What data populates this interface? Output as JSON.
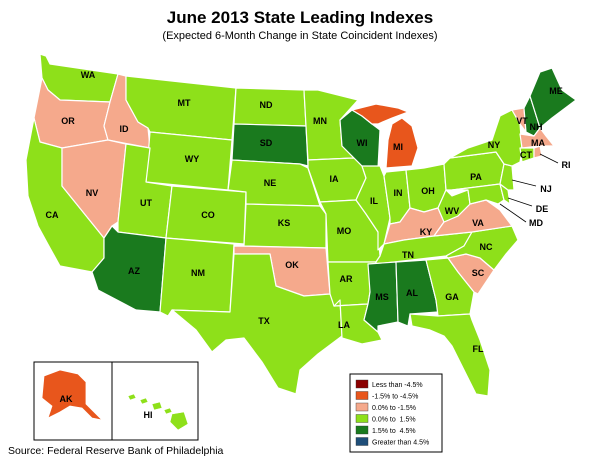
{
  "title": "June 2013 State Leading Indexes",
  "subtitle": "(Expected 6-Month Change in State Coincident Indexes)",
  "source": "Source: Federal Reserve Bank of Philadelphia",
  "colors": {
    "lt_neg45": "#8b0000",
    "neg15_neg45": "#e8561c",
    "zero_neg15": "#f5a98c",
    "zero_15": "#8ee01a",
    "p15_45": "#1a7a1e",
    "gt45": "#1f4e79"
  },
  "legend": [
    {
      "label": "Less than -4.5%",
      "color": "#8b0000"
    },
    {
      "label": "-1.5% to -4.5%",
      "color": "#e8561c"
    },
    {
      "label": "0.0% to -1.5%",
      "color": "#f5a98c"
    },
    {
      "label": "0.0% to  1.5%",
      "color": "#8ee01a"
    },
    {
      "label": "1.5% to  4.5%",
      "color": "#1a7a1e"
    },
    {
      "label": "Greater than 4.5%",
      "color": "#1f4e79"
    }
  ],
  "states": {
    "WA": {
      "label": "WA",
      "category": "0.0% to  1.5%"
    },
    "OR": {
      "label": "OR",
      "category": "0.0% to -1.5%"
    },
    "CA": {
      "label": "CA",
      "category": "0.0% to  1.5%"
    },
    "ID": {
      "label": "ID",
      "category": "0.0% to -1.5%"
    },
    "NV": {
      "label": "NV",
      "category": "0.0% to -1.5%"
    },
    "MT": {
      "label": "MT",
      "category": "0.0% to  1.5%"
    },
    "WY": {
      "label": "WY",
      "category": "0.0% to  1.5%"
    },
    "UT": {
      "label": "UT",
      "category": "0.0% to  1.5%"
    },
    "AZ": {
      "label": "AZ",
      "category": "1.5% to  4.5%"
    },
    "CO": {
      "label": "CO",
      "category": "0.0% to  1.5%"
    },
    "NM": {
      "label": "NM",
      "category": "0.0% to  1.5%"
    },
    "ND": {
      "label": "ND",
      "category": "0.0% to  1.5%"
    },
    "SD": {
      "label": "SD",
      "category": "1.5% to  4.5%"
    },
    "NE": {
      "label": "NE",
      "category": "0.0% to  1.5%"
    },
    "KS": {
      "label": "KS",
      "category": "0.0% to  1.5%"
    },
    "OK": {
      "label": "OK",
      "category": "0.0% to -1.5%"
    },
    "TX": {
      "label": "TX",
      "category": "0.0% to  1.5%"
    },
    "MN": {
      "label": "MN",
      "category": "0.0% to  1.5%"
    },
    "IA": {
      "label": "IA",
      "category": "0.0% to  1.5%"
    },
    "MO": {
      "label": "MO",
      "category": "0.0% to  1.5%"
    },
    "AR": {
      "label": "AR",
      "category": "0.0% to  1.5%"
    },
    "LA": {
      "label": "LA",
      "category": "0.0% to  1.5%"
    },
    "WI": {
      "label": "WI",
      "category": "1.5% to  4.5%"
    },
    "IL": {
      "label": "IL",
      "category": "0.0% to  1.5%"
    },
    "MI": {
      "label": "MI",
      "category": "-1.5% to -4.5%"
    },
    "IN": {
      "label": "IN",
      "category": "0.0% to  1.5%"
    },
    "OH": {
      "label": "OH",
      "category": "0.0% to  1.5%"
    },
    "KY": {
      "label": "KY",
      "category": "0.0% to -1.5%"
    },
    "TN": {
      "label": "TN",
      "category": "0.0% to  1.5%"
    },
    "MS": {
      "label": "MS",
      "category": "1.5% to  4.5%"
    },
    "AL": {
      "label": "AL",
      "category": "1.5% to  4.5%"
    },
    "GA": {
      "label": "GA",
      "category": "0.0% to  1.5%"
    },
    "FL": {
      "label": "FL",
      "category": "0.0% to  1.5%"
    },
    "SC": {
      "label": "SC",
      "category": "0.0% to -1.5%"
    },
    "NC": {
      "label": "NC",
      "category": "0.0% to  1.5%"
    },
    "VA": {
      "label": "VA",
      "category": "0.0% to -1.5%"
    },
    "WV": {
      "label": "WV",
      "category": "0.0% to  1.5%"
    },
    "PA": {
      "label": "PA",
      "category": "0.0% to  1.5%"
    },
    "NY": {
      "label": "NY",
      "category": "0.0% to  1.5%"
    },
    "VT": {
      "label": "VT",
      "category": "0.0% to -1.5%"
    },
    "NH": {
      "label": "NH",
      "category": "1.5% to  4.5%"
    },
    "ME": {
      "label": "ME",
      "category": "1.5% to  4.5%"
    },
    "MA": {
      "label": "MA",
      "category": "0.0% to -1.5%"
    },
    "CT": {
      "label": "CT",
      "category": "0.0% to  1.5%"
    },
    "RI": {
      "label": "RI",
      "category": "0.0% to -1.5%"
    },
    "NJ": {
      "label": "NJ",
      "category": "0.0% to  1.5%"
    },
    "DE": {
      "label": "DE",
      "category": "0.0% to  1.5%"
    },
    "MD": {
      "label": "MD",
      "category": "0.0% to  1.5%"
    },
    "AK": {
      "label": "AK",
      "category": "-1.5% to -4.5%"
    },
    "HI": {
      "label": "HI",
      "category": "0.0% to  1.5%"
    }
  }
}
